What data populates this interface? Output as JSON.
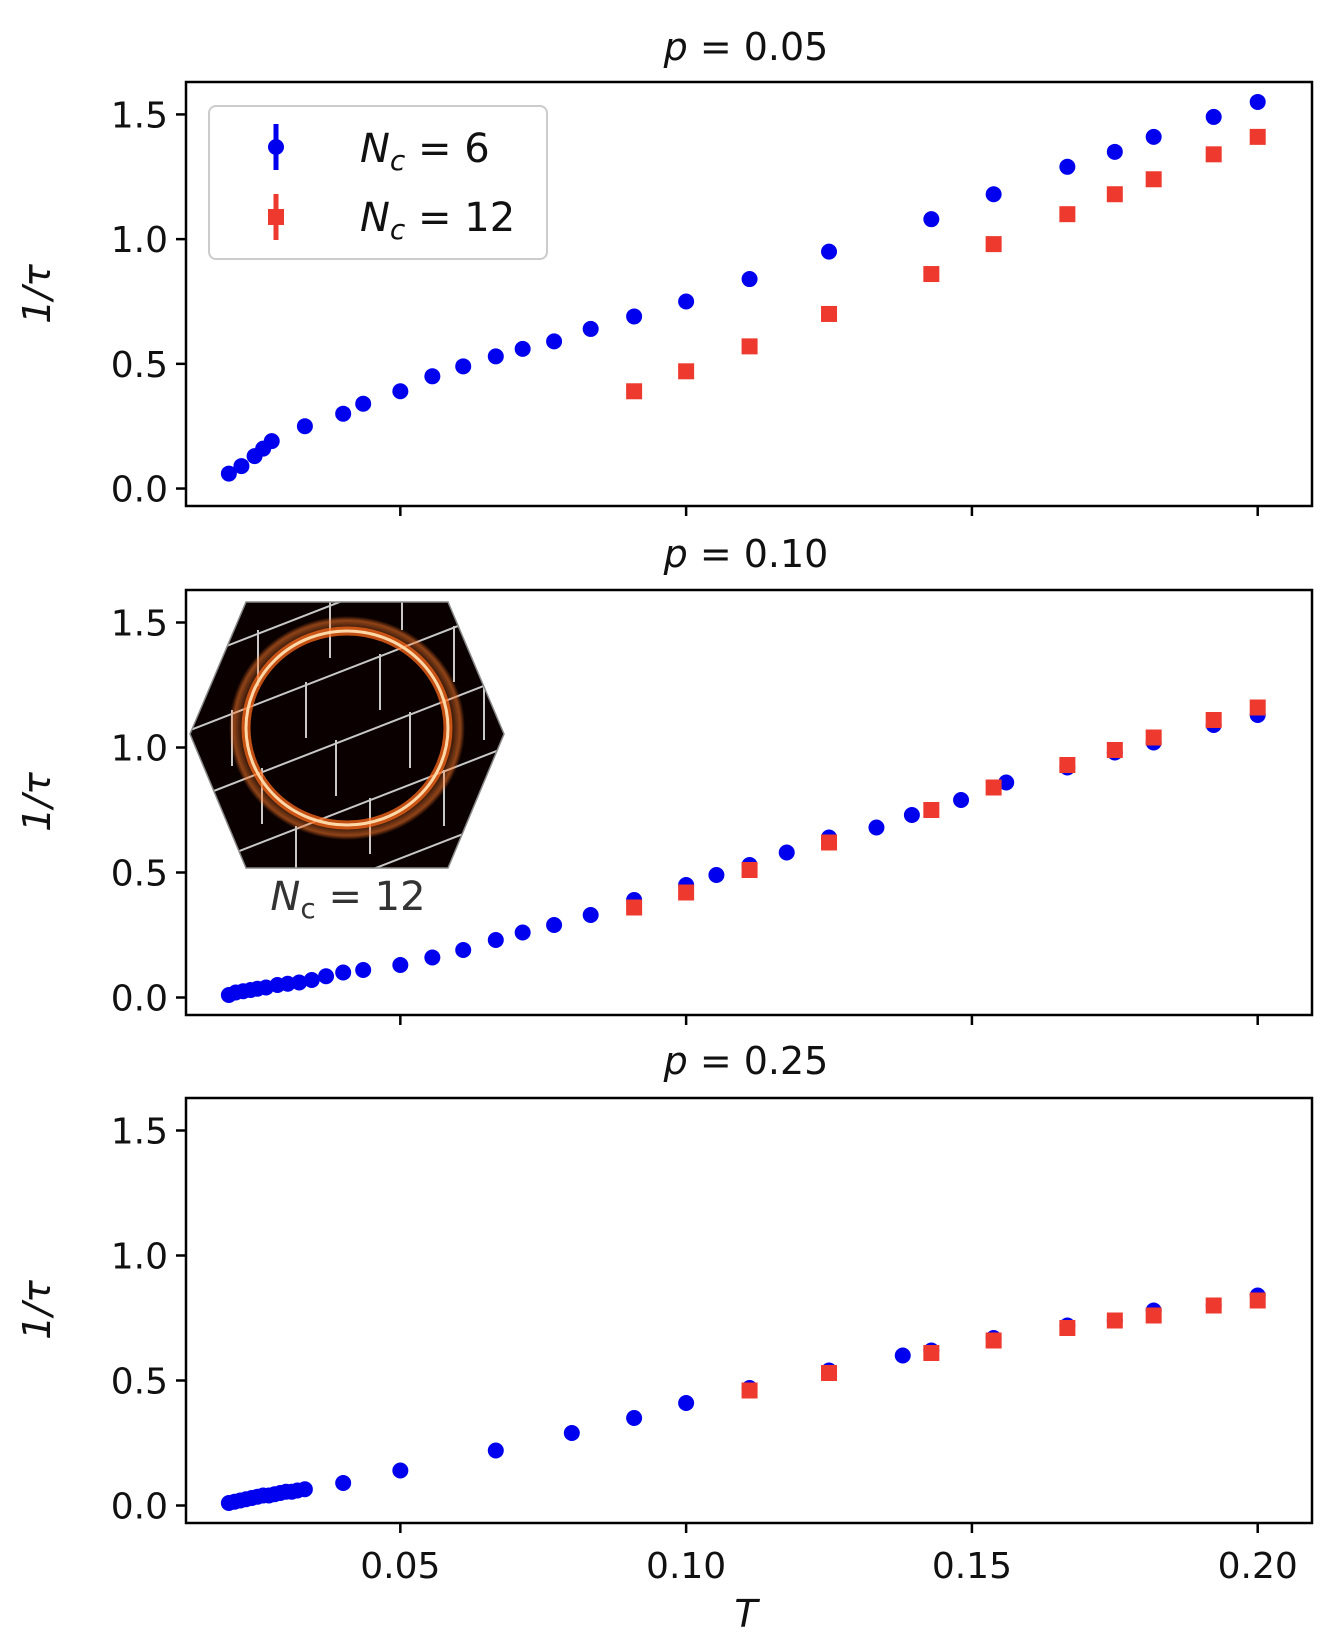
{
  "colors": {
    "nc6": "#0000ee",
    "nc12": "#ee3a2e"
  },
  "chart_data": {
    "type": "scatter",
    "xlabel": "T",
    "ylabel": "1/τ",
    "xlim": [
      0.0125,
      0.2095
    ],
    "ylim": [
      -0.07,
      1.63
    ],
    "xticks": [
      "0.05",
      "0.10",
      "0.15",
      "0.20"
    ],
    "yticks": [
      "0.0",
      "0.5",
      "1.0",
      "1.5"
    ],
    "legend": {
      "location": "upper-left",
      "entries": [
        {
          "var": "N",
          "sub": "c",
          "rest": " = 6",
          "marker": "circle",
          "series": "nc6"
        },
        {
          "var": "N",
          "sub": "c",
          "rest": " = 12",
          "marker": "square",
          "series": "nc12"
        }
      ]
    },
    "inset": {
      "panel": 1,
      "label_var": "N",
      "label_sub": "c",
      "label_rest": " = 12"
    },
    "panels": [
      {
        "title_var": "p",
        "title_rest": " = 0.05",
        "series": [
          {
            "name": "N_c = 6",
            "key": "nc6",
            "marker": "circle",
            "x": [
              0.02,
              0.0222,
              0.0245,
              0.026,
              0.0275,
              0.0333,
              0.04,
              0.0435,
              0.05,
              0.0556,
              0.061,
              0.0667,
              0.0714,
              0.0769,
              0.0833,
              0.0909,
              0.1,
              0.1111,
              0.125,
              0.1429,
              0.1538,
              0.1667,
              0.175,
              0.1818,
              0.1923,
              0.2
            ],
            "y": [
              0.06,
              0.09,
              0.13,
              0.16,
              0.19,
              0.25,
              0.3,
              0.34,
              0.39,
              0.45,
              0.49,
              0.53,
              0.56,
              0.59,
              0.64,
              0.69,
              0.75,
              0.84,
              0.95,
              1.08,
              1.18,
              1.29,
              1.35,
              1.41,
              1.49,
              1.55
            ]
          },
          {
            "name": "N_c = 12",
            "key": "nc12",
            "marker": "square",
            "x": [
              0.0909,
              0.1,
              0.1111,
              0.125,
              0.1429,
              0.1538,
              0.1667,
              0.175,
              0.1818,
              0.1923,
              0.2
            ],
            "y": [
              0.39,
              0.47,
              0.57,
              0.7,
              0.86,
              0.98,
              1.1,
              1.18,
              1.24,
              1.34,
              1.41
            ]
          }
        ]
      },
      {
        "title_var": "p",
        "title_rest": " = 0.10",
        "series": [
          {
            "name": "N_c = 6",
            "key": "nc6",
            "marker": "circle",
            "x": [
              0.02,
              0.0212,
              0.0225,
              0.0238,
              0.025,
              0.0265,
              0.0285,
              0.0303,
              0.0323,
              0.0345,
              0.037,
              0.04,
              0.0435,
              0.05,
              0.0556,
              0.061,
              0.0667,
              0.0714,
              0.0769,
              0.0833,
              0.0909,
              0.1,
              0.1053,
              0.1111,
              0.1176,
              0.125,
              0.1333,
              0.1395,
              0.1481,
              0.156,
              0.1667,
              0.175,
              0.1818,
              0.1923,
              0.2
            ],
            "y": [
              0.01,
              0.02,
              0.025,
              0.03,
              0.035,
              0.04,
              0.05,
              0.055,
              0.06,
              0.07,
              0.085,
              0.1,
              0.11,
              0.13,
              0.16,
              0.19,
              0.23,
              0.26,
              0.29,
              0.33,
              0.39,
              0.45,
              0.49,
              0.53,
              0.58,
              0.64,
              0.68,
              0.73,
              0.79,
              0.86,
              0.92,
              0.98,
              1.02,
              1.09,
              1.13
            ]
          },
          {
            "name": "N_c = 12",
            "key": "nc12",
            "marker": "square",
            "x": [
              0.0909,
              0.1,
              0.1111,
              0.125,
              0.1429,
              0.1538,
              0.1667,
              0.175,
              0.1818,
              0.1923,
              0.2
            ],
            "y": [
              0.36,
              0.42,
              0.51,
              0.62,
              0.75,
              0.84,
              0.93,
              0.99,
              1.04,
              1.11,
              1.16
            ]
          }
        ]
      },
      {
        "title_var": "p",
        "title_rest": " = 0.25",
        "series": [
          {
            "name": "N_c = 6",
            "key": "nc6",
            "marker": "circle",
            "x": [
              0.02,
              0.021,
              0.022,
              0.023,
              0.024,
              0.025,
              0.026,
              0.027,
              0.028,
              0.029,
              0.03,
              0.031,
              0.032,
              0.0333,
              0.04,
              0.05,
              0.0667,
              0.08,
              0.0909,
              0.1,
              0.1111,
              0.125,
              0.1379,
              0.1429,
              0.1538,
              0.1667,
              0.175,
              0.1818,
              0.1923,
              0.2
            ],
            "y": [
              0.01,
              0.015,
              0.02,
              0.025,
              0.03,
              0.035,
              0.04,
              0.04,
              0.045,
              0.05,
              0.055,
              0.055,
              0.06,
              0.065,
              0.09,
              0.14,
              0.22,
              0.29,
              0.35,
              0.41,
              0.47,
              0.54,
              0.6,
              0.62,
              0.67,
              0.72,
              0.74,
              0.78,
              0.8,
              0.84
            ]
          },
          {
            "name": "N_c = 12",
            "key": "nc12",
            "marker": "square",
            "x": [
              0.1111,
              0.125,
              0.1429,
              0.1538,
              0.1667,
              0.175,
              0.1818,
              0.1923,
              0.2
            ],
            "y": [
              0.46,
              0.53,
              0.61,
              0.66,
              0.71,
              0.74,
              0.76,
              0.8,
              0.82
            ]
          }
        ]
      }
    ]
  }
}
